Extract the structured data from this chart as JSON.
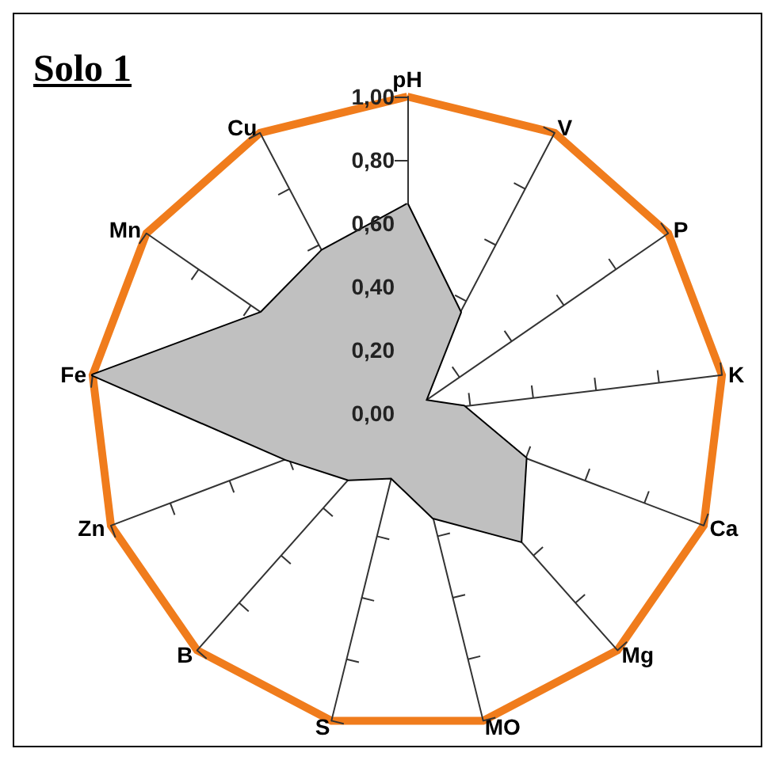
{
  "chart_data": {
    "type": "radar",
    "title": "Solo 1",
    "categories": [
      "pH",
      "V",
      "P",
      "K",
      "Ca",
      "Mg",
      "MO",
      "S",
      "B",
      "Zn",
      "Fe",
      "Mn",
      "Cu"
    ],
    "series": [
      {
        "color": "#c0c0c0",
        "values": [
          0.66,
          0.36,
          0.07,
          0.18,
          0.4,
          0.54,
          0.34,
          0.21,
          0.28,
          0.41,
          1.0,
          0.56,
          0.58
        ]
      }
    ],
    "ylim": [
      0,
      1
    ],
    "yticks": [
      {
        "value": 0,
        "label": "0,00"
      },
      {
        "value": 0.2,
        "label": "0,20"
      },
      {
        "value": 0.4,
        "label": "0,40"
      },
      {
        "value": 0.6,
        "label": "0,60"
      },
      {
        "value": 0.8,
        "label": "0,80"
      },
      {
        "value": 1,
        "label": "1,00"
      }
    ],
    "grid": false,
    "marker": "none"
  }
}
